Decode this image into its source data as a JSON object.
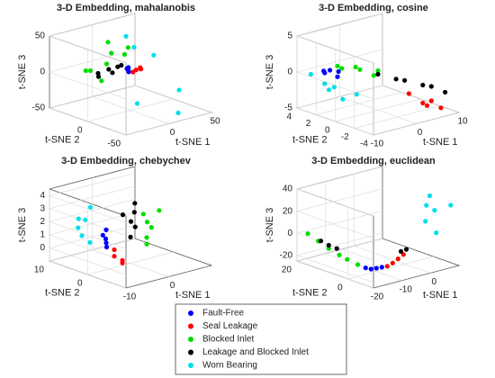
{
  "legend": [
    {
      "name": "Fault-Free",
      "color": "#0000ff"
    },
    {
      "name": "Seal Leakage",
      "color": "#ff0000"
    },
    {
      "name": "Blocked Inlet",
      "color": "#00dd00"
    },
    {
      "name": "Leakage and Blocked Inlet",
      "color": "#000000"
    },
    {
      "name": "Worn Bearing",
      "color": "#00e0e8"
    }
  ],
  "chart_data": [
    {
      "type": "scatter3d",
      "title": "3-D Embedding, mahalanobis",
      "xlabel": "t-SNE 1",
      "ylabel": "t-SNE 2",
      "zlabel": "t-SNE 3",
      "xlim": [
        -50,
        50
      ],
      "xticks": [
        0,
        50
      ],
      "ylim": [
        -50,
        50
      ],
      "yticks": [
        -50,
        0
      ],
      "zlim": [
        -50,
        50
      ],
      "zticks": [
        -50,
        0,
        50
      ],
      "series": [
        {
          "x": [
            5,
            8,
            3,
            10,
            6
          ],
          "y": [
            10,
            12,
            8,
            14,
            9
          ],
          "z": [
            2,
            0,
            4,
            1,
            -2
          ]
        },
        {
          "x": [
            12,
            15,
            10,
            14,
            16
          ],
          "y": [
            6,
            4,
            8,
            2,
            5
          ],
          "z": [
            0,
            3,
            -3,
            2,
            1
          ]
        },
        {
          "x": [
            -30,
            -20,
            -10,
            0,
            15,
            20,
            -25,
            5
          ],
          "y": [
            25,
            30,
            20,
            25,
            20,
            30,
            10,
            35
          ],
          "z": [
            5,
            0,
            10,
            20,
            25,
            10,
            -5,
            30
          ]
        },
        {
          "x": [
            -20,
            -12,
            -5,
            0,
            3,
            -15
          ],
          "y": [
            20,
            15,
            18,
            12,
            20,
            25
          ],
          "z": [
            0,
            5,
            -3,
            8,
            2,
            -8
          ]
        },
        {
          "x": [
            40,
            30,
            45,
            -10,
            20,
            35
          ],
          "y": [
            40,
            -30,
            20,
            -20,
            -40,
            45
          ],
          "z": [
            10,
            -20,
            5,
            -30,
            -45,
            25
          ]
        }
      ]
    },
    {
      "type": "scatter3d",
      "title": "3-D Embedding, cosine",
      "xlabel": "t-SNE 1",
      "ylabel": "t-SNE 2",
      "zlabel": "t-SNE 3",
      "xlim": [
        -10,
        10
      ],
      "xticks": [
        -10,
        0,
        10
      ],
      "ylim": [
        -4,
        4
      ],
      "yticks": [
        -4,
        -2,
        0,
        2,
        4
      ],
      "zlim": [
        -5,
        5
      ],
      "zticks": [
        -5,
        0,
        5
      ],
      "series": [
        {
          "x": [
            -8,
            -7,
            -6,
            -5,
            -9
          ],
          "y": [
            2,
            1,
            3,
            2,
            1
          ],
          "z": [
            0.5,
            1,
            0,
            -0.5,
            1.5
          ]
        },
        {
          "x": [
            5,
            6,
            7,
            8,
            8
          ],
          "y": [
            -1,
            -2,
            -2,
            -3,
            -2
          ],
          "z": [
            -3,
            -4,
            -4.5,
            -4.5,
            -4
          ]
        },
        {
          "x": [
            -5,
            -4,
            -3,
            -2,
            -1,
            0
          ],
          "y": [
            2,
            2,
            1,
            1,
            0,
            0
          ],
          "z": [
            1,
            0.5,
            1,
            0.5,
            0,
            0.5
          ]
        },
        {
          "x": [
            0,
            2,
            4,
            6,
            8,
            9
          ],
          "y": [
            0,
            -1,
            -1,
            -2,
            -2,
            -3
          ],
          "z": [
            0,
            -0.5,
            -1,
            -1.5,
            -2,
            -2.5
          ]
        },
        {
          "x": [
            -9,
            -8,
            -7,
            -6,
            -5,
            -8
          ],
          "y": [
            3,
            2,
            2,
            1,
            0,
            1
          ],
          "z": [
            0,
            -1,
            -2,
            -3,
            -2,
            -1
          ]
        }
      ]
    },
    {
      "type": "scatter3d",
      "title": "3-D Embedding, chebychev",
      "xlabel": "t-SNE 1",
      "ylabel": "t-SNE 2",
      "zlabel": "t-SNE 3",
      "xlim": [
        -10,
        10
      ],
      "xticks": [
        -10,
        0
      ],
      "ylim": [
        -10,
        10
      ],
      "yticks": [
        0,
        10
      ],
      "zlim": [
        -1,
        4.5
      ],
      "zticks": [
        0,
        1,
        2,
        3,
        4
      ],
      "series": [
        {
          "x": [
            -3,
            -2,
            -4,
            -3,
            -2
          ],
          "y": [
            3,
            4,
            2,
            3,
            5
          ],
          "z": [
            0.5,
            0,
            1,
            1.5,
            0.8
          ]
        },
        {
          "x": [
            -2,
            -1,
            -2,
            -1
          ],
          "y": [
            2,
            1,
            2,
            1
          ],
          "z": [
            -0.5,
            -1,
            0,
            -0.8
          ]
        },
        {
          "x": [
            2,
            3,
            4,
            3,
            2,
            4
          ],
          "y": [
            -2,
            -1,
            -3,
            0,
            -2,
            -1
          ],
          "z": [
            1,
            2,
            3,
            2.5,
            0.5,
            1.5
          ]
        },
        {
          "x": [
            0,
            1,
            0,
            1,
            2,
            0
          ],
          "y": [
            0,
            1,
            -1,
            0,
            1,
            2
          ],
          "z": [
            1,
            2,
            3,
            3.5,
            1.5,
            2.5
          ]
        },
        {
          "x": [
            -6,
            -5,
            -7,
            -4,
            -6,
            -5
          ],
          "y": [
            6,
            8,
            4,
            6,
            7,
            5
          ],
          "z": [
            1,
            2,
            2.5,
            3,
            1.5,
            0.5
          ]
        }
      ]
    },
    {
      "type": "scatter3d",
      "title": "3-D Embedding, euclidean",
      "xlabel": "t-SNE 1",
      "ylabel": "t-SNE 2",
      "zlabel": "t-SNE 3",
      "xlim": [
        -20,
        10
      ],
      "xticks": [
        -20,
        -10,
        0
      ],
      "ylim": [
        -10,
        20
      ],
      "yticks": [
        0,
        20
      ],
      "zlim": [
        -25,
        40
      ],
      "zticks": [
        -20,
        0,
        20,
        40
      ],
      "series": [
        {
          "x": [
            -12,
            -11,
            -10,
            -9
          ],
          "y": [
            2,
            1,
            0,
            -1
          ],
          "z": [
            -22,
            -23,
            -22,
            -21
          ]
        },
        {
          "x": [
            -8,
            -7,
            -6,
            -5
          ],
          "y": [
            -2,
            -3,
            -4,
            -5
          ],
          "z": [
            -20,
            -17,
            -13,
            -9
          ]
        },
        {
          "x": [
            -18,
            -17,
            -16,
            -15,
            -14,
            -13
          ],
          "y": [
            18,
            15,
            12,
            9,
            7,
            4
          ],
          "z": [
            0,
            -5,
            -10,
            -14,
            -17,
            -20
          ]
        },
        {
          "x": [
            -17,
            -16,
            -15,
            -5,
            -4
          ],
          "y": [
            14,
            12,
            10,
            -4,
            -5
          ],
          "z": [
            -4,
            -7,
            -9,
            -7,
            -5
          ]
        },
        {
          "x": [
            0,
            3,
            5,
            8,
            2,
            6
          ],
          "y": [
            -8,
            -5,
            -6,
            -9,
            -10,
            -3
          ],
          "z": [
            20,
            30,
            25,
            30,
            10,
            35
          ]
        }
      ]
    }
  ]
}
